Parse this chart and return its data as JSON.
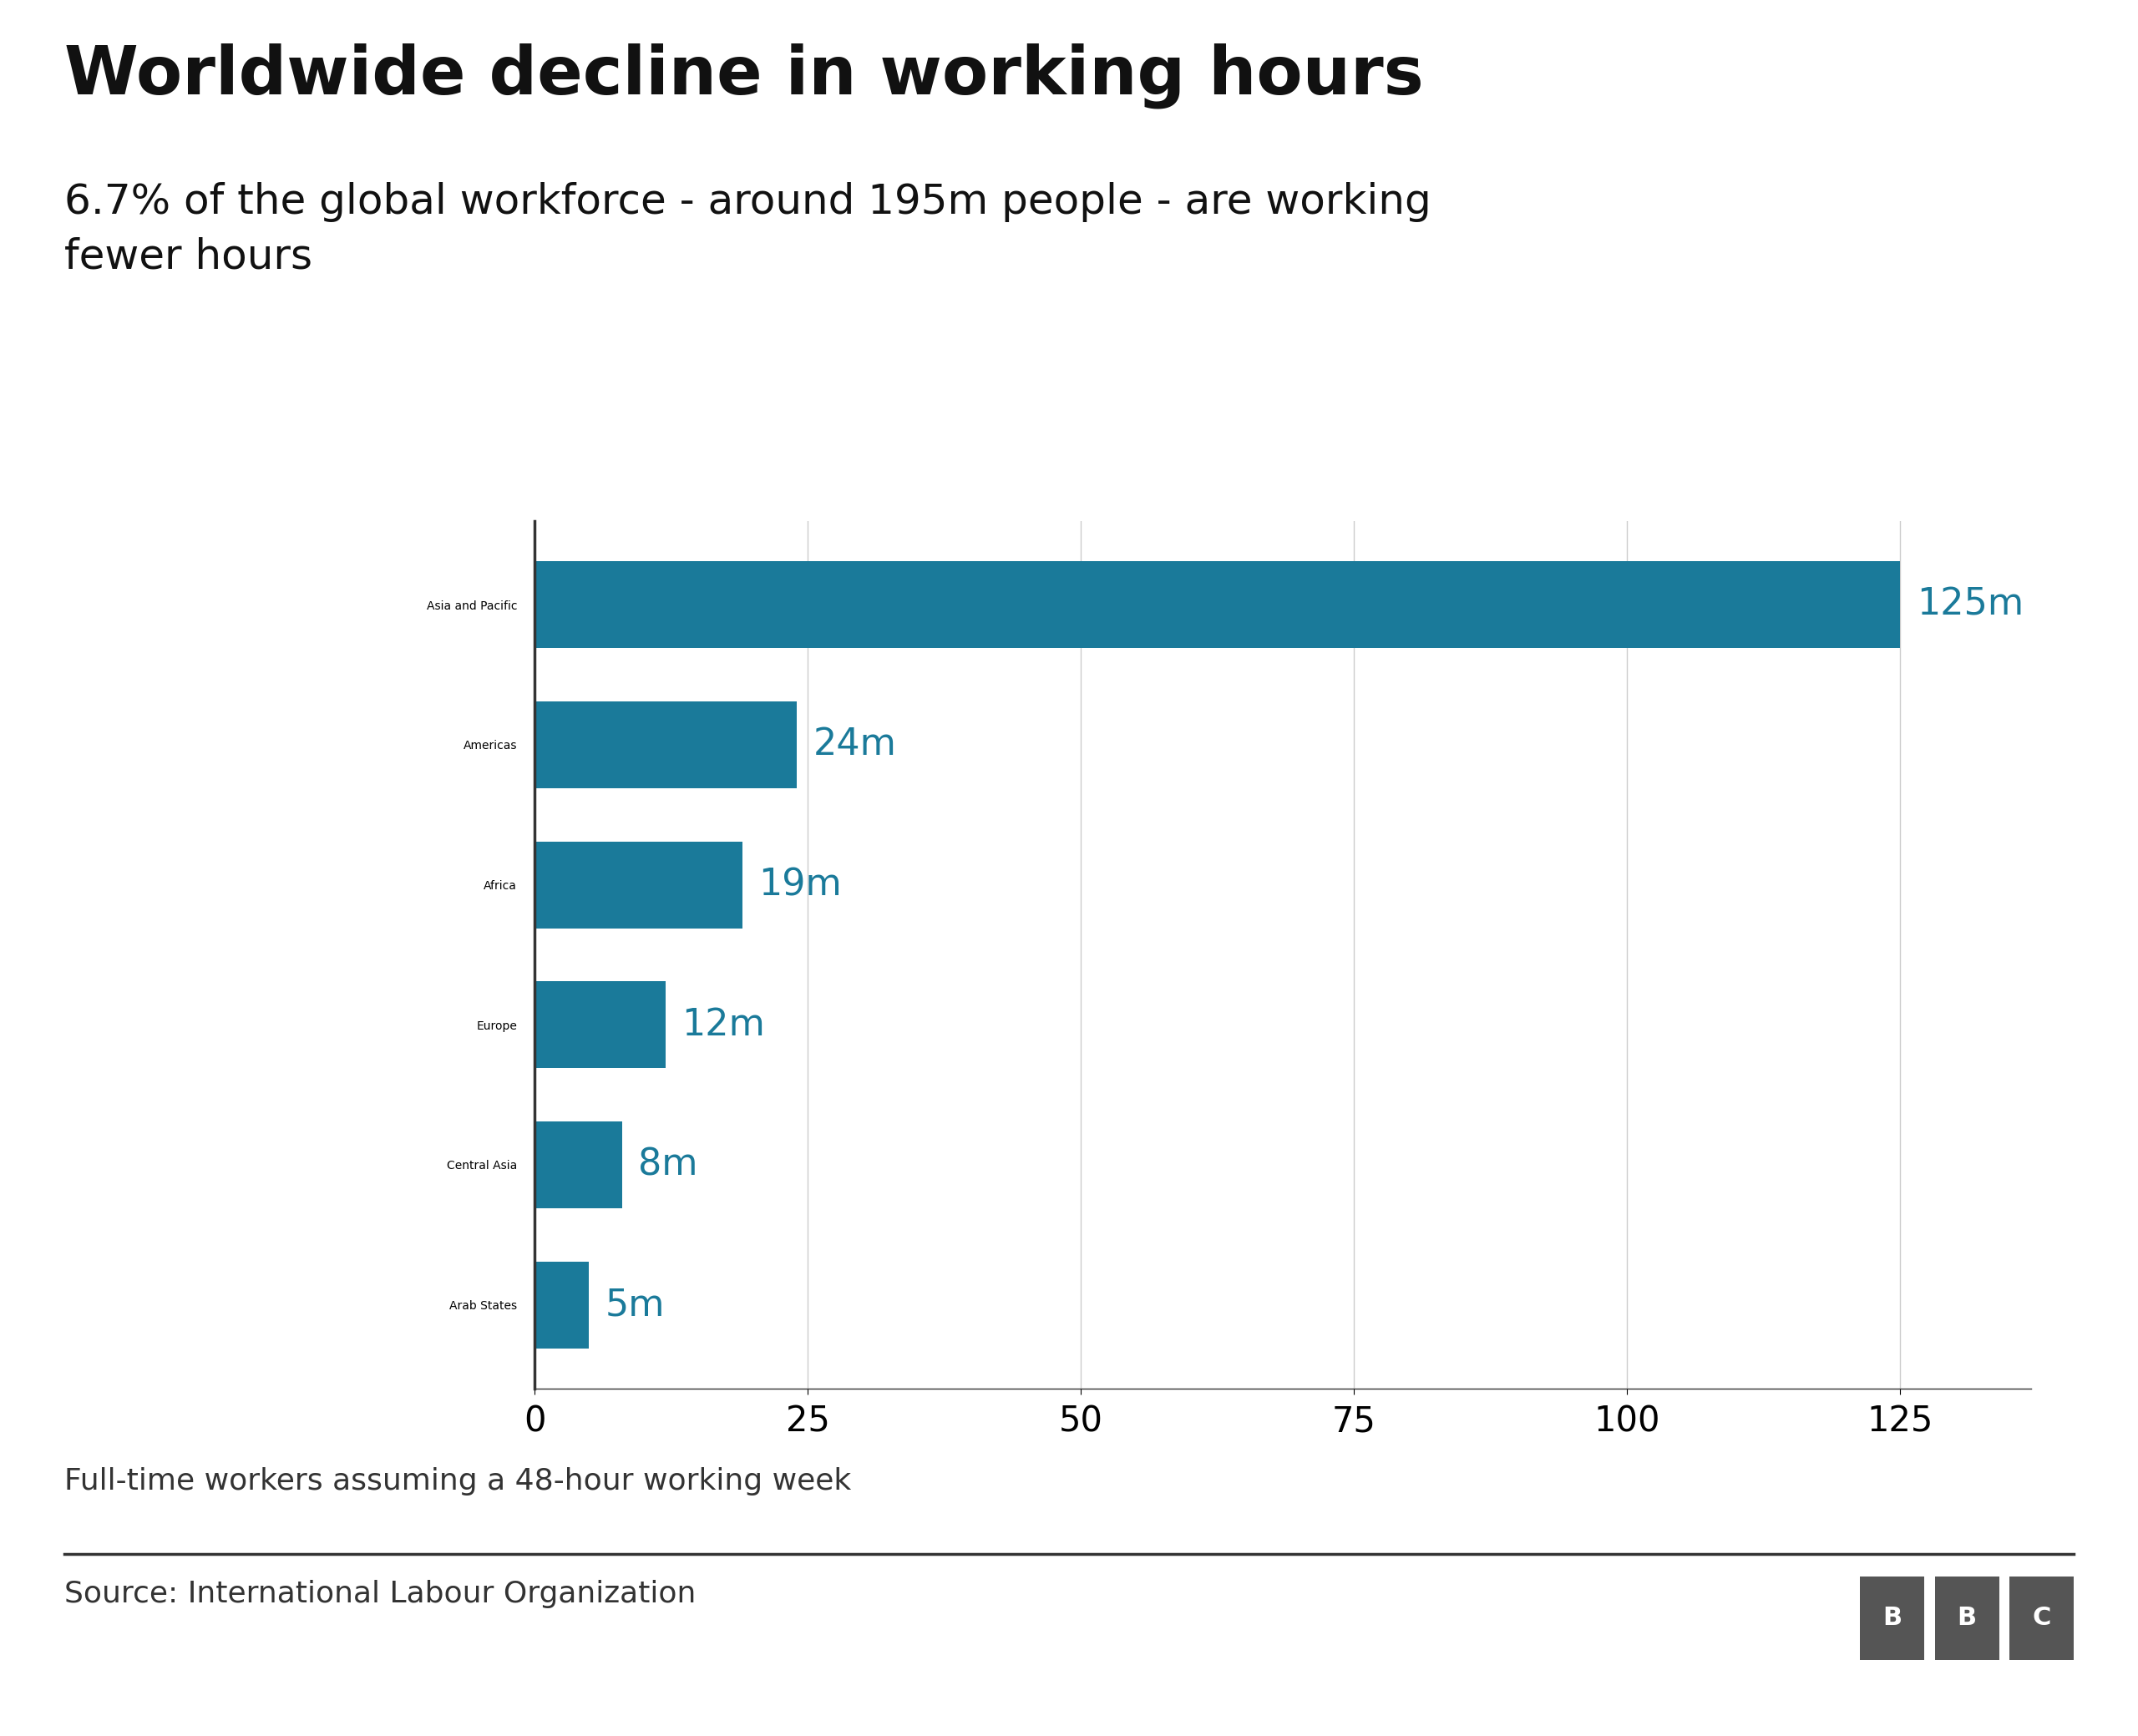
{
  "title": "Worldwide decline in working hours",
  "subtitle": "6.7% of the global workforce - around 195m people - are working\nfewer hours",
  "categories": [
    "Asia and Pacific",
    "Americas",
    "Africa",
    "Europe",
    "Central Asia",
    "Arab States"
  ],
  "values": [
    125,
    24,
    19,
    12,
    8,
    5
  ],
  "labels": [
    "125m",
    "24m",
    "19m",
    "12m",
    "8m",
    "5m"
  ],
  "bar_color": "#1a7a9a",
  "label_color": "#1a7a9a",
  "xlim": [
    0,
    137
  ],
  "xticks": [
    0,
    25,
    50,
    75,
    100,
    125
  ],
  "footnote": "Full-time workers assuming a 48-hour working week",
  "source": "Source: International Labour Organization",
  "bbc_logo": "BBC",
  "bg_color": "#ffffff",
  "title_fontsize": 58,
  "subtitle_fontsize": 36,
  "label_fontsize": 32,
  "ytick_fontsize": 32,
  "xtick_fontsize": 30,
  "footnote_fontsize": 26,
  "source_fontsize": 26,
  "grid_color": "#cccccc",
  "spine_color": "#333333"
}
